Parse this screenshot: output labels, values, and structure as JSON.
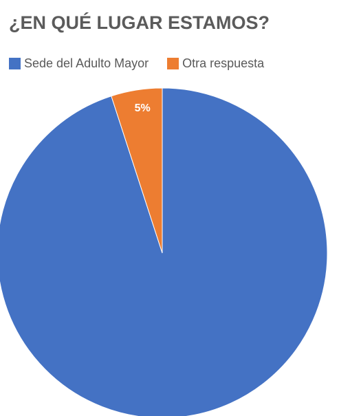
{
  "chart_data": {
    "type": "pie",
    "title": "¿EN QUÉ LUGAR ESTAMOS?",
    "legend_position": "top",
    "categories": [
      "Sede del Adulto Mayor",
      "Otra respuesta"
    ],
    "values": [
      95,
      5
    ],
    "colors": [
      "#4472C4",
      "#ED7D31"
    ],
    "data_labels": [
      "",
      "5%"
    ]
  }
}
